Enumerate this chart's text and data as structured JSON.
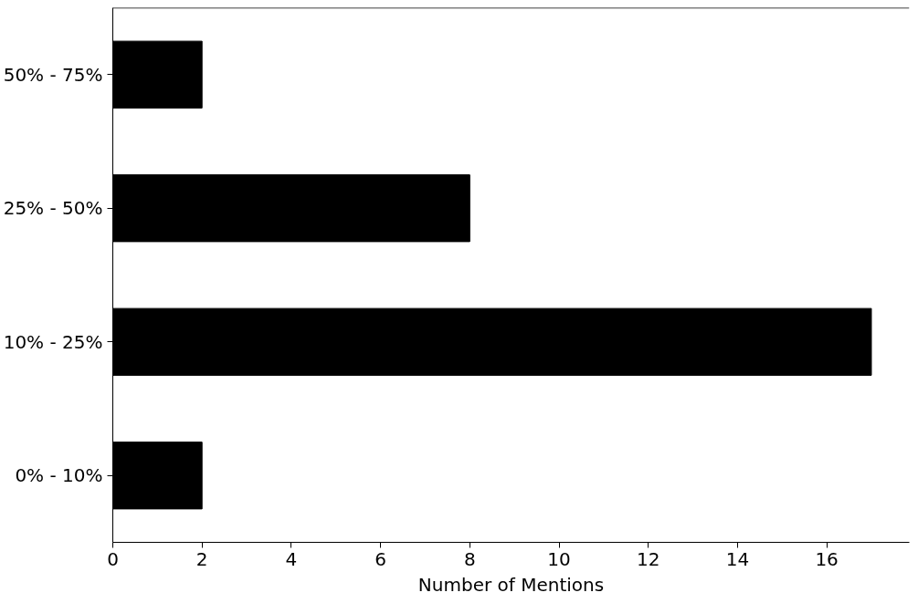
{
  "chart_data": {
    "type": "bar",
    "orientation": "horizontal",
    "xlabel": "Number of Mentions",
    "categories": [
      "50% - 75%",
      "25% - 50%",
      "10% - 25%",
      "0% - 10%"
    ],
    "values": [
      2,
      8,
      17,
      2
    ],
    "color": "#000000",
    "xlim": [
      0,
      17.85
    ],
    "xticks": [
      0,
      2,
      4,
      6,
      8,
      10,
      12,
      14,
      16
    ],
    "grid": false
  }
}
